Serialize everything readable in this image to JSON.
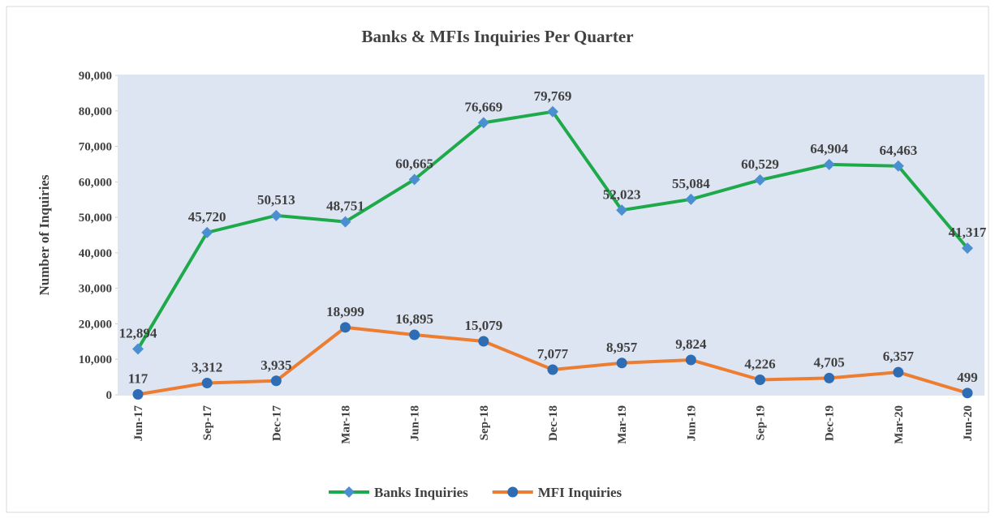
{
  "chart_data": {
    "type": "line",
    "title": "Banks & MFIs Inquiries Per Quarter",
    "y_label": "Number of Inquiries",
    "categories": [
      "Jun-17",
      "Sep-17",
      "Dec-17",
      "Mar-18",
      "Jun-18",
      "Sep-18",
      "Dec-18",
      "Mar-19",
      "Jun-19",
      "Sep-19",
      "Dec-19",
      "Mar-20",
      "Jun-20"
    ],
    "series": [
      {
        "name": "Banks Inquiries",
        "color": "#1eaa4b",
        "marker_color": "#4a90d0",
        "values": [
          12894,
          45720,
          50513,
          48751,
          60665,
          76669,
          79769,
          52023,
          55084,
          60529,
          64904,
          64463,
          41317
        ],
        "value_labels": [
          "12,894",
          "45,720",
          "50,513",
          "48,751",
          "60,665",
          "76,669",
          "79,769",
          "52,023",
          "55,084",
          "60,529",
          "64,904",
          "64,463",
          "41,317"
        ]
      },
      {
        "name": "MFI Inquiries",
        "color": "#ed7d31",
        "marker_color": "#2e6db4",
        "values": [
          117,
          3312,
          3935,
          18999,
          16895,
          15079,
          7077,
          8957,
          9824,
          4226,
          4705,
          6357,
          499
        ],
        "value_labels": [
          "117",
          "3,312",
          "3,935",
          "18,999",
          "16,895",
          "15,079",
          "7,077",
          "8,957",
          "9,824",
          "4,226",
          "4,705",
          "6,357",
          "499"
        ]
      }
    ],
    "ylim": [
      0,
      90000
    ],
    "yticks": [
      0,
      {
        "value": 10000,
        "label": "10,000"
      },
      {
        "value": 20000,
        "label": "20,000"
      },
      {
        "value": 30000,
        "label": "30,000"
      },
      {
        "value": 40000,
        "label": "40,000"
      },
      {
        "value": 50000,
        "label": "50,000"
      },
      {
        "value": 60000,
        "label": "60,000"
      },
      {
        "value": 70000,
        "label": "70,000"
      },
      {
        "value": 80000,
        "label": "80,000"
      },
      {
        "value": 90000,
        "label": "90,000"
      }
    ],
    "legend": "bottom"
  }
}
